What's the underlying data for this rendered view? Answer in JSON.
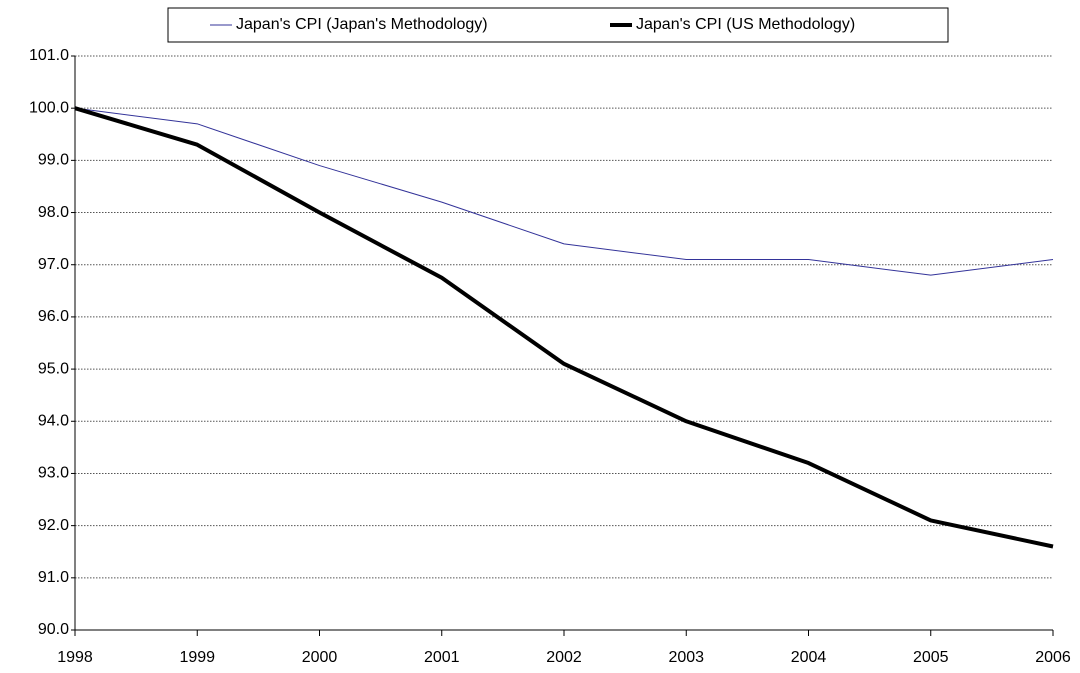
{
  "chart_data": {
    "type": "line",
    "x": [
      1998,
      1999,
      2000,
      2001,
      2002,
      2003,
      2004,
      2005,
      2006
    ],
    "xlim": [
      1998,
      2006
    ],
    "xticks": [
      1998,
      1999,
      2000,
      2001,
      2002,
      2003,
      2004,
      2005,
      2006
    ],
    "ylim": [
      90,
      101
    ],
    "yticks": [
      {
        "value": 90,
        "label": "90.0"
      },
      {
        "value": 91,
        "label": "91.0"
      },
      {
        "value": 92,
        "label": "92.0"
      },
      {
        "value": 93,
        "label": "93.0"
      },
      {
        "value": 94,
        "label": "94.0"
      },
      {
        "value": 95,
        "label": "95.0"
      },
      {
        "value": 96,
        "label": "96.0"
      },
      {
        "value": 97,
        "label": "97.0"
      },
      {
        "value": 98,
        "label": "98.0"
      },
      {
        "value": 99,
        "label": "99.0"
      },
      {
        "value": 100,
        "label": "100.0"
      },
      {
        "value": 101,
        "label": "101.0"
      }
    ],
    "grid": true,
    "legend": "top",
    "series": [
      {
        "name": "Japan's CPI (Japan's Methodology)",
        "color": "#333399",
        "values": [
          100.0,
          99.7,
          98.9,
          98.2,
          97.4,
          97.1,
          97.1,
          96.8,
          97.1
        ]
      },
      {
        "name": "Japan's CPI (US Methodology)",
        "color": "#000000",
        "values": [
          100.0,
          99.3,
          98.0,
          96.75,
          95.1,
          94.0,
          93.2,
          92.1,
          91.6
        ]
      }
    ]
  }
}
